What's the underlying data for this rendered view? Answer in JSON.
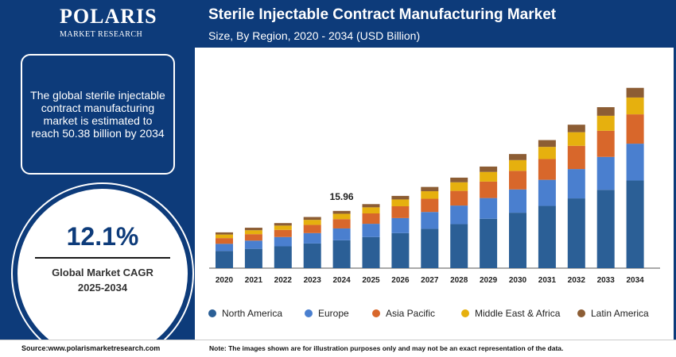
{
  "brand": {
    "name": "POLARIS",
    "sub": "MARKET RESEARCH"
  },
  "header": {
    "title": "Sterile Injectable Contract Manufacturing Market",
    "subtitle": "Size, By Region, 2020 - 2034 (USD Billion)"
  },
  "summary": {
    "text": "The global sterile injectable contract manufacturing market is estimated to reach 50.38 billion by 2034"
  },
  "cagr": {
    "value": "12.1%",
    "label_line1": "Global Market CAGR",
    "label_line2": "2025-2034"
  },
  "footer": {
    "source": "Source:www.polarismarketresearch.com",
    "note": "Note: The images shown are for illustration purposes only and may not be an exact representation of the data."
  },
  "colors": {
    "North America": "#2b5f96",
    "Europe": "#4a7fcf",
    "Asia Pacific": "#d8672b",
    "Middle East & Africa": "#e6b00e",
    "Latin America": "#8c5d34"
  },
  "chart_data": {
    "type": "bar",
    "stacked": true,
    "categories": [
      "2020",
      "2021",
      "2022",
      "2023",
      "2024",
      "2025",
      "2026",
      "2027",
      "2028",
      "2029",
      "2030",
      "2031",
      "2032",
      "2033",
      "2034"
    ],
    "series": [
      {
        "name": "North America",
        "values": [
          4.8,
          5.4,
          6.1,
          6.9,
          7.8,
          8.7,
          9.8,
          11.0,
          12.3,
          13.8,
          15.5,
          17.4,
          19.5,
          21.9,
          24.5
        ]
      },
      {
        "name": "Europe",
        "values": [
          2.0,
          2.3,
          2.6,
          2.9,
          3.3,
          3.7,
          4.2,
          4.7,
          5.2,
          5.8,
          6.5,
          7.3,
          8.2,
          9.2,
          10.3
        ]
      },
      {
        "name": "Asia Pacific",
        "values": [
          1.6,
          1.8,
          2.0,
          2.3,
          2.6,
          2.9,
          3.3,
          3.7,
          4.1,
          4.6,
          5.2,
          5.8,
          6.5,
          7.3,
          8.2
        ]
      },
      {
        "name": "Middle East & Africa",
        "values": [
          1.0,
          1.1,
          1.2,
          1.4,
          1.5,
          1.7,
          1.9,
          2.1,
          2.4,
          2.7,
          3.0,
          3.4,
          3.8,
          4.2,
          4.7
        ]
      },
      {
        "name": "Latin America",
        "values": [
          0.6,
          0.7,
          0.7,
          0.8,
          0.8,
          0.9,
          1.0,
          1.2,
          1.3,
          1.5,
          1.7,
          1.9,
          2.1,
          2.4,
          2.7
        ]
      }
    ],
    "annotations": [
      {
        "category": "2024",
        "label": "15.96"
      }
    ],
    "ylim": [
      0,
      55
    ],
    "grid": false,
    "legend": "bottom"
  }
}
